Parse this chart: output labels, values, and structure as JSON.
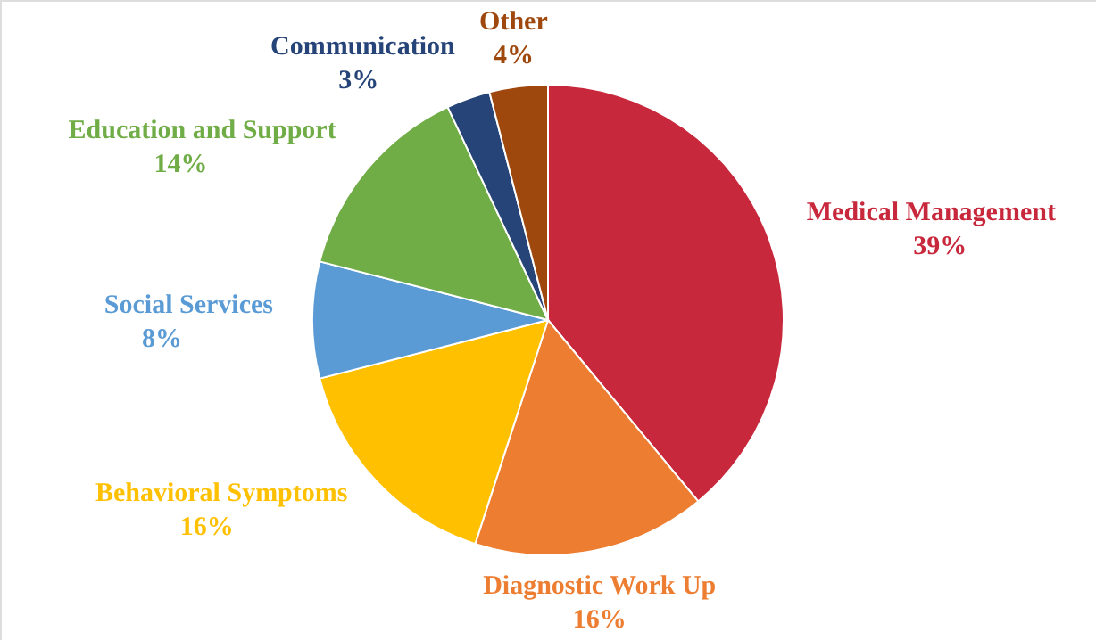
{
  "chart_data": {
    "type": "pie",
    "categories": [
      "Medical Management",
      "Diagnostic Work Up",
      "Behavioral Symptoms",
      "Social Services",
      "Education and Support",
      "Communication",
      "Other"
    ],
    "values": [
      39,
      16,
      16,
      8,
      14,
      3,
      4
    ],
    "colors": [
      "#c8283c",
      "#ed7d31",
      "#ffc000",
      "#5b9bd5",
      "#70ad47",
      "#264478",
      "#9e480e"
    ],
    "value_labels": [
      "39%",
      "16%",
      "16%",
      "8%",
      "14%",
      "3%",
      "4%"
    ]
  }
}
